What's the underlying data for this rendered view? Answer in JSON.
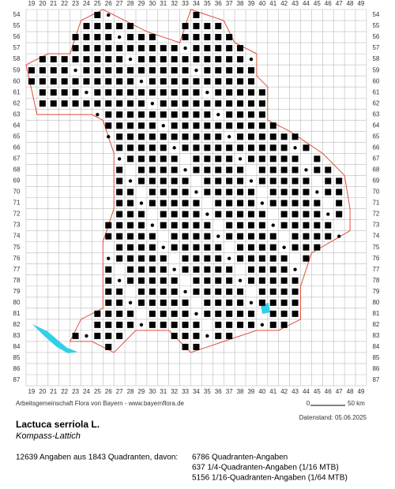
{
  "map": {
    "grid": {
      "columns": [
        19,
        20,
        21,
        22,
        23,
        24,
        25,
        26,
        27,
        28,
        29,
        30,
        31,
        32,
        33,
        34,
        35,
        36,
        37,
        38,
        39,
        40,
        41,
        42,
        43,
        44,
        45,
        46,
        47,
        48,
        49
      ],
      "rows": [
        54,
        55,
        56,
        57,
        58,
        59,
        60,
        61,
        62,
        63,
        64,
        65,
        66,
        67,
        68,
        69,
        70,
        71,
        72,
        73,
        74,
        75,
        76,
        77,
        78,
        79,
        80,
        81,
        82,
        83,
        84,
        85,
        86,
        87
      ]
    },
    "credit": "Arbeitsgemeinschaft Flora von Bayern - www.bayernflora.de",
    "scale": {
      "start": "0",
      "end": "50 km"
    },
    "date": "Datenstand: 05.06.2025"
  },
  "species": {
    "name": "Lactuca serriola L.",
    "common_name": "Kompass-Lattich"
  },
  "stats": {
    "summary": "12639 Angaben aus 1843 Quadranten, davon:",
    "lines": [
      "6786 Quadranten-Angaben",
      "637 1/4-Quadranten-Angaben (1/16 MTB)",
      "5156 1/16-Quadranten-Angaben (1/64 MTB)"
    ]
  }
}
